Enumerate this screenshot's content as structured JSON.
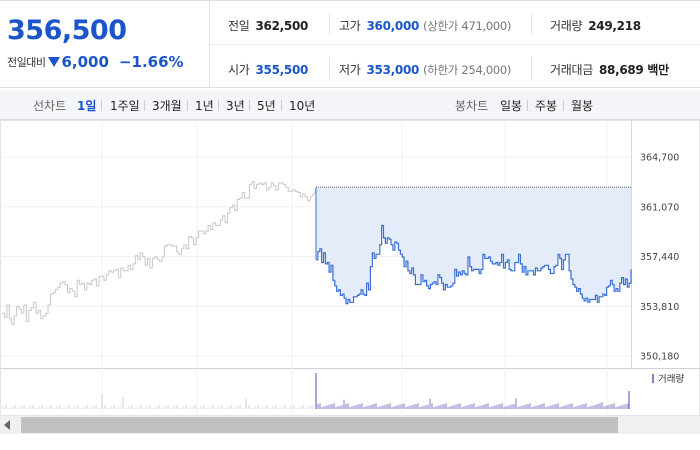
{
  "summary": {
    "current_price": "356,500",
    "change_label": "전일대비",
    "change_amount": "6,000",
    "change_percent": "−1.66%",
    "prev_close": {
      "label": "전일",
      "value": "362,500"
    },
    "high": {
      "label": "고가",
      "value": "360,000",
      "limit": "(상한가 471,000)"
    },
    "volume": {
      "label": "거래량",
      "value": "249,218"
    },
    "open": {
      "label": "시가",
      "value": "355,500"
    },
    "low": {
      "label": "저가",
      "value": "353,000",
      "limit": "(하한가 254,000)"
    },
    "trade_value": {
      "label": "거래대금",
      "value": "88,689 백만"
    }
  },
  "toolbar": {
    "line_chart_label": "선차트",
    "line_tabs": [
      "1일",
      "1주일",
      "3개월",
      "1년",
      "3년",
      "5년",
      "10년"
    ],
    "active_tab": "1일",
    "candle_chart_label": "봉차트",
    "candle_tabs": [
      "일봉",
      "주봉",
      "월봉"
    ]
  },
  "chart_data": {
    "type": "line",
    "y_ticks": [
      "364,700",
      "361,070",
      "357,440",
      "353,810",
      "350,180"
    ],
    "ylim": [
      350180,
      364700
    ],
    "reference_line": 362500,
    "volume_label": "거래량",
    "colors": {
      "previous": "#c8c8c8",
      "today": "#3a70d6",
      "today_fill": "#e4ecfa",
      "volume_today": "#8a7ac9"
    },
    "series": [
      {
        "values": [
          353300,
          353000,
          353900,
          352900,
          352500,
          353100,
          353800,
          353600,
          353300,
          353900,
          352700,
          353500,
          353700,
          354100,
          353300,
          353500,
          352900,
          353100,
          353300,
          353900,
          354700,
          354800,
          355000,
          355200,
          355500,
          355600,
          355400,
          354800,
          355100,
          354900,
          354500,
          355700,
          355400,
          355500,
          355000,
          355500,
          355400,
          355700,
          355800,
          355300,
          356000,
          356000,
          355700,
          356100,
          356400,
          356300,
          356400,
          356500,
          355900,
          356600,
          356400,
          356400,
          356800,
          356500,
          356900,
          357500,
          357200,
          357700,
          357400,
          356800,
          357300,
          356600,
          357300,
          357400,
          357200,
          357100,
          357400,
          358200,
          358300,
          358300,
          358200,
          358200,
          357800,
          357600,
          358000,
          358300,
          358000,
          358900,
          358800,
          358300,
          358800,
          359300,
          359300,
          359100,
          359300,
          359700,
          359400,
          359900,
          359700,
          359700,
          360100,
          360400,
          359900,
          360600,
          361000,
          361200,
          360800,
          361600,
          361700,
          362100,
          361700,
          361700,
          362700,
          362900,
          362400,
          362700,
          362800,
          362700,
          362800,
          362300,
          362500,
          362800,
          362600,
          362300,
          362800,
          362800,
          362700,
          362500,
          362200,
          362200,
          362300,
          362200,
          362100,
          361800,
          362000,
          361800,
          361500,
          361700
        ]
      },
      {
        "values": [
          357200,
          357800,
          358000,
          357000,
          357700,
          356900,
          357000,
          356300,
          356800,
          355700,
          355300,
          354900,
          355000,
          354600,
          354700,
          354400,
          354000,
          354300,
          354100,
          354100,
          354500,
          354500,
          354600,
          354700,
          355000,
          354700,
          354600,
          355500,
          355000,
          356700,
          357700,
          357300,
          357600,
          357600,
          358300,
          359700,
          358800,
          358400,
          358800,
          358700,
          358300,
          357900,
          358500,
          358400,
          357900,
          357600,
          357400,
          356700,
          357100,
          356400,
          356200,
          356600,
          356100,
          355400,
          355400,
          355400,
          356100,
          355600,
          355700,
          355300,
          355100,
          355400,
          355500,
          355600,
          355400,
          356100,
          355900,
          355500,
          355000,
          355400,
          355200,
          355200,
          355300,
          355500,
          356500,
          356000,
          356300,
          356100,
          356400,
          356200,
          356100,
          357400,
          356700,
          356400,
          356500,
          356500,
          356500,
          356200,
          356500,
          357600,
          357300,
          357300,
          357400,
          357100,
          356900,
          356900,
          357000,
          356800,
          357000,
          357600,
          356600,
          357000,
          357200,
          356500,
          356400,
          356400,
          357000,
          357000,
          357600,
          356900,
          356300,
          356700,
          356100,
          356400,
          356400,
          356400,
          356100,
          356600,
          356400,
          356400,
          356600,
          356700,
          356800,
          356800,
          356500,
          356200,
          356200,
          356700,
          356800,
          357600,
          357300,
          356500,
          357200,
          357600,
          357600,
          356400,
          355800,
          355400,
          355200,
          354900,
          355100,
          354700,
          354400,
          354200,
          354400,
          354100,
          354300,
          354300,
          354300,
          354600,
          354100,
          354500,
          354500,
          354700,
          354600,
          355200,
          355300,
          355700,
          355400,
          354900,
          355100,
          354900,
          355500,
          355900,
          355400,
          355800,
          355200,
          355500,
          356500
        ]
      }
    ]
  }
}
